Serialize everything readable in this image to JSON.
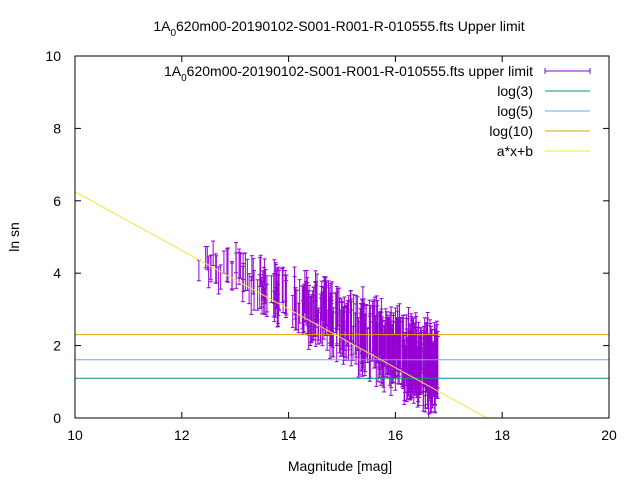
{
  "chart_data": {
    "type": "scatter",
    "title_prefix": "1A",
    "title_subscript": "0",
    "title_rest": "620m00-20190102-S001-R001-R-010555.fts Upper limit",
    "xlabel": "Magnitude [mag]",
    "ylabel": "ln sn",
    "xlim": [
      10,
      20
    ],
    "ylim": [
      0,
      10
    ],
    "xticks": [
      "10",
      "12",
      "14",
      "16",
      "18",
      "20"
    ],
    "yticks": [
      "0",
      "2",
      "4",
      "6",
      "8",
      "10"
    ],
    "grid": false,
    "legend_position": "top-right",
    "series": [
      {
        "name_prefix": "1A",
        "name_subscript": "0",
        "name_rest": "620m00-20190102-S001-R001-R-010555.fts upper limit",
        "kind": "errorbar",
        "color": "#9400d3",
        "x_range": [
          12.2,
          16.8
        ],
        "y_center_at_x_min": 4.6,
        "y_center_at_x_max": 1.3,
        "point_count": 420,
        "error_half_width_range": [
          0.2,
          0.9
        ]
      },
      {
        "name": "log(3)",
        "kind": "hline",
        "y": 1.0986,
        "color": "#009e73"
      },
      {
        "name": "log(5)",
        "kind": "hline",
        "y": 1.6094,
        "color": "#56b4e9"
      },
      {
        "name": "log(10)",
        "kind": "hline",
        "y": 2.3026,
        "color": "#e69f00"
      },
      {
        "name": "a*x+b",
        "kind": "line",
        "slope": -0.81,
        "intercept": 14.35,
        "color": "#f0e442"
      }
    ]
  }
}
